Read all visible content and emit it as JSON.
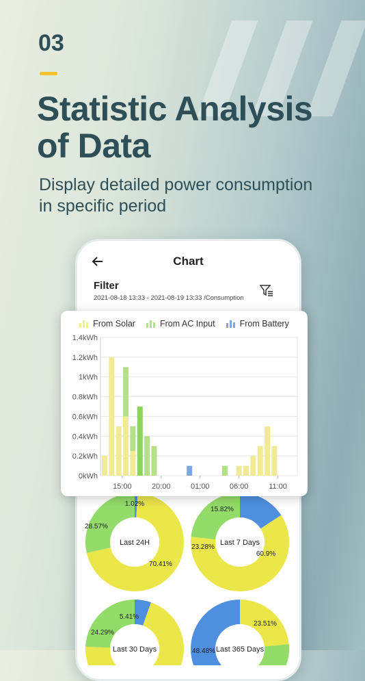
{
  "hero": {
    "number": "03",
    "headline_line1": "Statistic Analysis",
    "headline_line2": "of Data",
    "subtitle_line1": "Display detailed power consumption",
    "subtitle_line2": "in specific period"
  },
  "app": {
    "title": "Chart",
    "filter_label": "Filter",
    "filter_range": "2021-08-18 13:33 - 2021-08-19 13:33 /Consumption"
  },
  "colors": {
    "solar": "#f0eb94",
    "ac": "#b4e08c",
    "battery": "#7ea6df",
    "donut_yellow": "#ebe64a",
    "donut_green": "#93dc6a",
    "donut_blue": "#4e8fe0"
  },
  "legend": [
    "From Solar",
    "From AC Input",
    "From Battery"
  ],
  "chart_data": [
    {
      "type": "bar",
      "ylabels": [
        "0kWh",
        "0.2kWh",
        "0.4kWh",
        "0.6kWh",
        "0.8kWh",
        "1kWh",
        "1.2kWh",
        "1.4kWh"
      ],
      "ylim": [
        0,
        1.4
      ],
      "xticks": [
        "15:00",
        "20:00",
        "01:00",
        "06:00",
        "11:00"
      ],
      "grid": true,
      "bars": [
        {
          "slot": 0,
          "solar": 0.2,
          "ac": 0,
          "battery": 0
        },
        {
          "slot": 1,
          "solar": 1.2,
          "ac": 0,
          "battery": 0
        },
        {
          "slot": 2,
          "solar": 0.5,
          "ac": 0,
          "battery": 0
        },
        {
          "slot": 3,
          "solar": 0.6,
          "ac": 0.5,
          "battery": 0
        },
        {
          "slot": 4,
          "solar": 0.25,
          "ac": 0.25,
          "battery": 0
        },
        {
          "slot": 5,
          "solar": 0,
          "ac": 0.7,
          "battery": 0
        },
        {
          "slot": 6,
          "solar": 0,
          "ac": 0.4,
          "battery": 0
        },
        {
          "slot": 7,
          "solar": 0,
          "ac": 0.3,
          "battery": 0
        },
        {
          "slot": 12,
          "solar": 0,
          "ac": 0,
          "battery": 0.1
        },
        {
          "slot": 17,
          "solar": 0,
          "ac": 0.1,
          "battery": 0
        },
        {
          "slot": 19,
          "solar": 0.1,
          "ac": 0,
          "battery": 0
        },
        {
          "slot": 20,
          "solar": 0.1,
          "ac": 0,
          "battery": 0
        },
        {
          "slot": 21,
          "solar": 0.2,
          "ac": 0,
          "battery": 0
        },
        {
          "slot": 22,
          "solar": 0.3,
          "ac": 0,
          "battery": 0
        },
        {
          "slot": 23,
          "solar": 0.5,
          "ac": 0,
          "battery": 0
        },
        {
          "slot": 24,
          "solar": 0.3,
          "ac": 0,
          "battery": 0
        }
      ]
    },
    {
      "type": "pie",
      "donuts": [
        {
          "title": "Last 24H",
          "slices": [
            {
              "label": "70.41%",
              "value": 70.41,
              "kind": "yellow"
            },
            {
              "label": "28.57%",
              "value": 28.57,
              "kind": "green"
            },
            {
              "label": "1.02%",
              "value": 1.02,
              "kind": "blue"
            }
          ]
        },
        {
          "title": "Last 7 Days",
          "slices": [
            {
              "label": "60.9%",
              "value": 60.9,
              "kind": "yellow"
            },
            {
              "label": "23.28%",
              "value": 23.28,
              "kind": "green"
            },
            {
              "label": "15.82%",
              "value": 15.82,
              "kind": "blue"
            }
          ]
        },
        {
          "title": "Last 30 Days",
          "slices": [
            {
              "label": "",
              "value": 70.3,
              "kind": "yellow"
            },
            {
              "label": "24.29%",
              "value": 24.29,
              "kind": "green"
            },
            {
              "label": "5.41%",
              "value": 5.41,
              "kind": "blue"
            }
          ]
        },
        {
          "title": "Last 365 Days",
          "slices": [
            {
              "label": "23.51%",
              "value": 23.51,
              "kind": "yellow"
            },
            {
              "label": "",
              "value": 28.01,
              "kind": "green"
            },
            {
              "label": "48.48%",
              "value": 48.48,
              "kind": "blue"
            }
          ]
        }
      ]
    }
  ]
}
